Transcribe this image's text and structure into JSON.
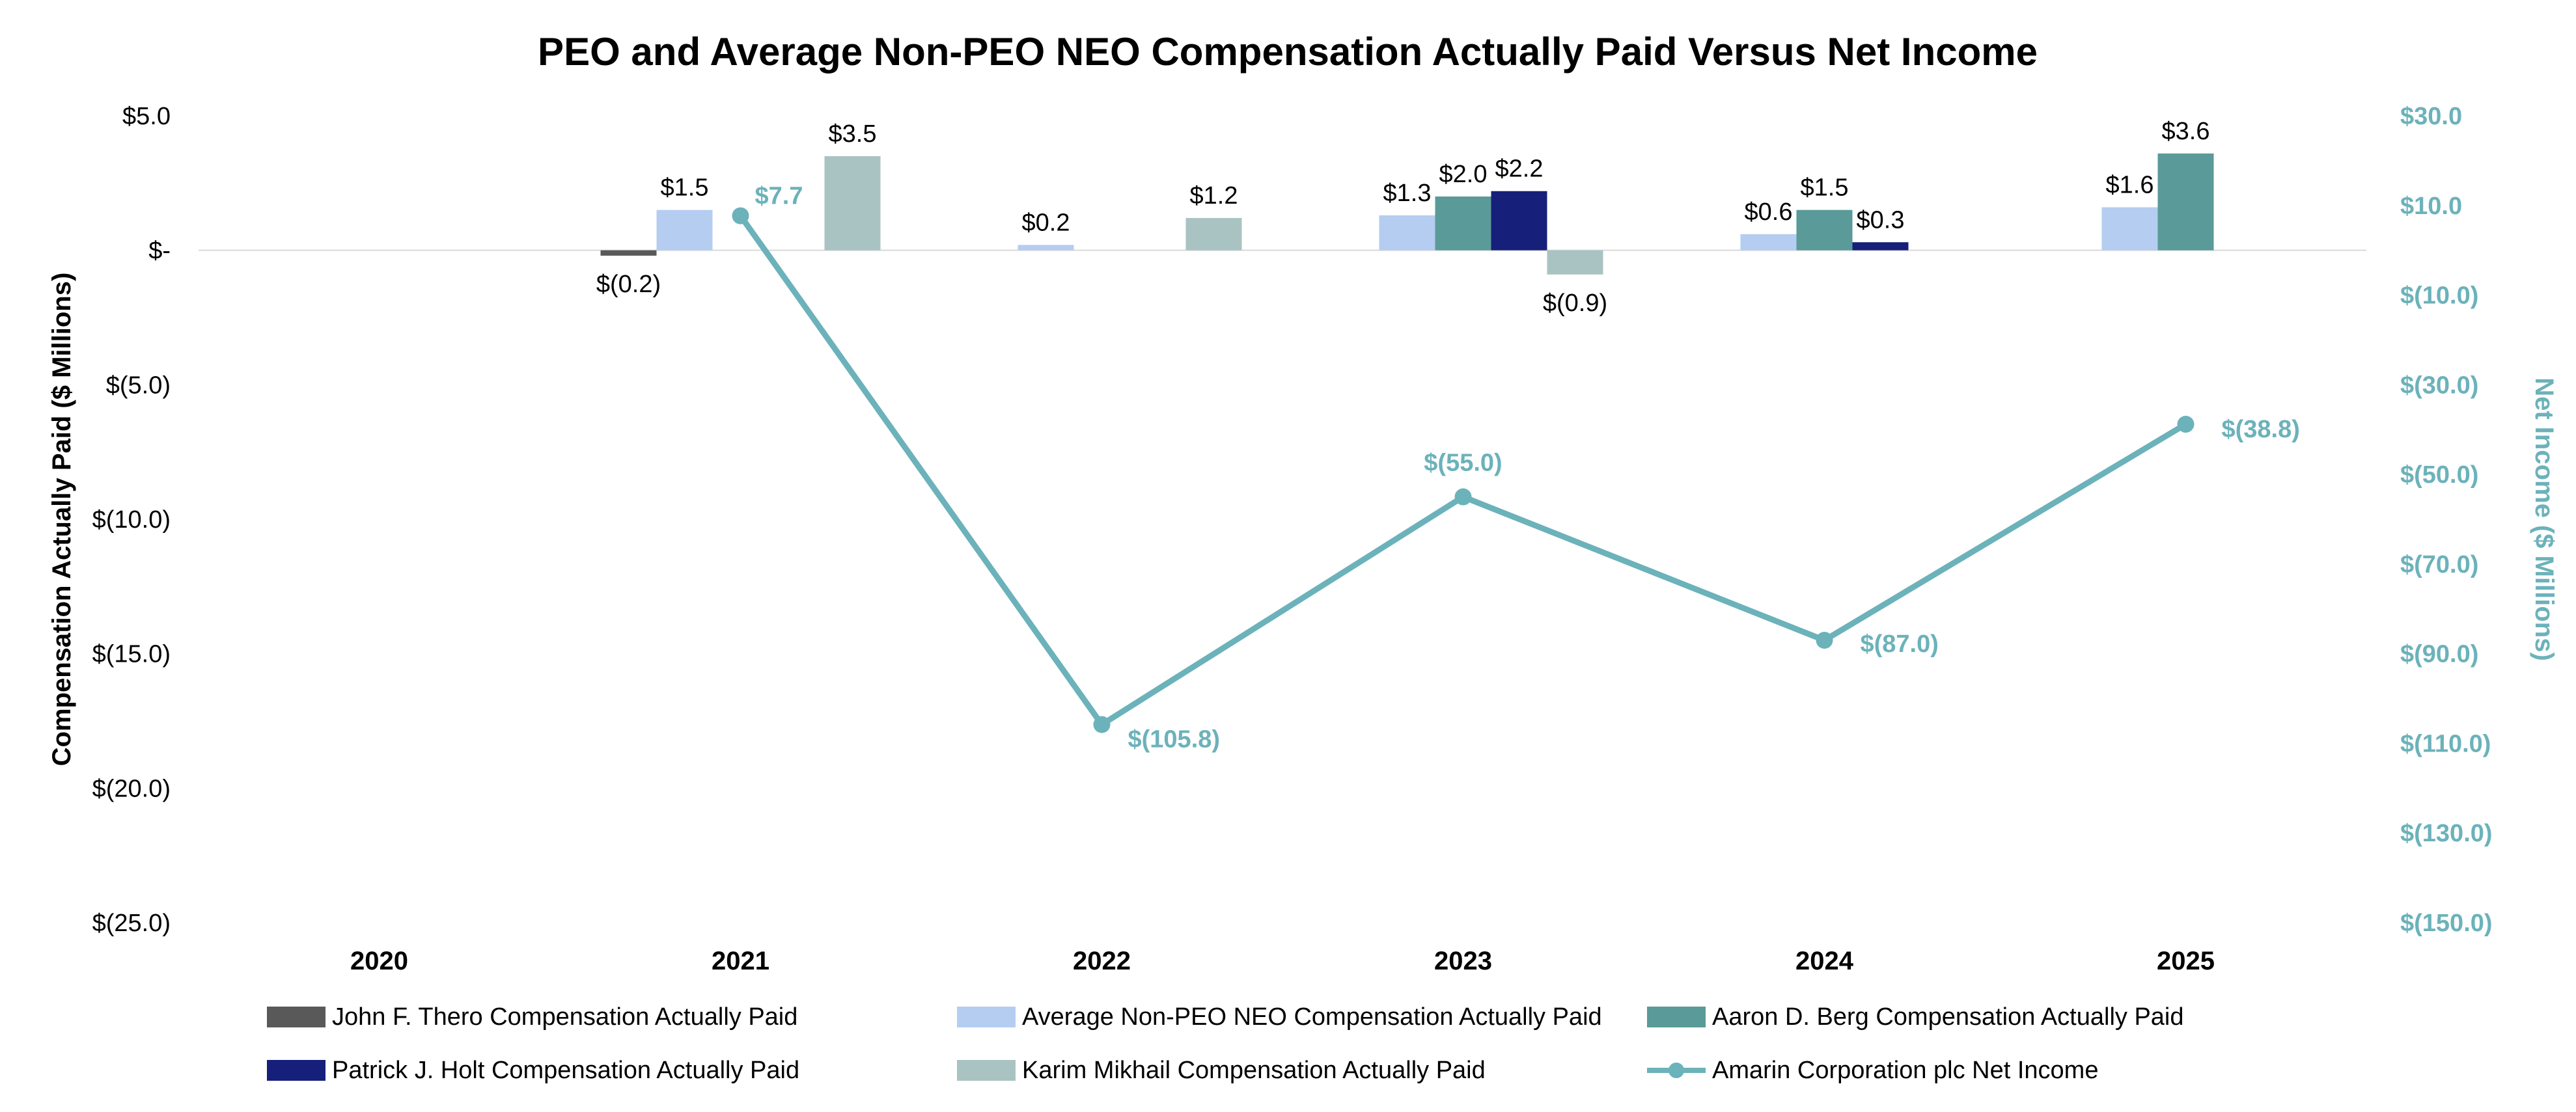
{
  "chart_data": {
    "type": "bar",
    "title": "PEO and Average Non-PEO NEO Compensation Actually Paid Versus Net Income",
    "categories": [
      "2020",
      "2021",
      "2022",
      "2023",
      "2024",
      "2025"
    ],
    "y_left": {
      "label": "Compensation Actually Paid ($ Millions)",
      "ylim": [
        -25,
        5
      ],
      "ticks": [
        5,
        0,
        -5,
        -10,
        -15,
        -20,
        -25
      ],
      "tick_labels": [
        "$5.0",
        "$-",
        "$(5.0)",
        "$(10.0)",
        "$(15.0)",
        "$(20.0)",
        "$(25.0)"
      ]
    },
    "y_right": {
      "label": "Net Income ($ Millions)",
      "ylim": [
        -150,
        30
      ],
      "ticks": [
        30,
        10,
        -10,
        -30,
        -50,
        -70,
        -90,
        -110,
        -130,
        -150
      ],
      "tick_labels": [
        "$30.0",
        "$10.0",
        "$(10.0)",
        "$(30.0)",
        "$(50.0)",
        "$(70.0)",
        "$(90.0)",
        "$(110.0)",
        "$(130.0)",
        "$(150.0)"
      ]
    },
    "bar_series": [
      {
        "name": "John F. Thero Compensation Actually Paid",
        "color": "#595959",
        "values": [
          null,
          -0.2,
          null,
          null,
          null,
          null
        ],
        "labels": [
          null,
          "$(0.2)",
          null,
          null,
          null,
          null
        ]
      },
      {
        "name": "Average Non-PEO NEO Compensation Actually Paid",
        "color": "#b4cdf0",
        "values": [
          null,
          1.5,
          0.2,
          1.3,
          0.6,
          1.6
        ],
        "labels": [
          null,
          "$1.5",
          "$0.2",
          "$1.3",
          "$0.6",
          "$1.6"
        ]
      },
      {
        "name": "Aaron D. Berg Compensation Actually Paid",
        "color": "#5a9a98",
        "values": [
          null,
          null,
          null,
          2.0,
          1.5,
          3.6
        ],
        "labels": [
          null,
          null,
          null,
          "$2.0",
          "$1.5",
          "$3.6"
        ]
      },
      {
        "name": "Patrick J. Holt Compensation Actually Paid",
        "color": "#16207a",
        "values": [
          null,
          null,
          null,
          2.2,
          0.3,
          null
        ],
        "labels": [
          null,
          null,
          null,
          "$2.2",
          "$0.3",
          null
        ]
      },
      {
        "name": "Karim Mikhail Compensation Actually Paid",
        "color": "#a9c3c2",
        "values": [
          null,
          3.5,
          1.2,
          -0.9,
          null,
          null
        ],
        "labels": [
          null,
          "$3.5",
          "$1.2",
          "$(0.9)",
          null,
          null
        ]
      }
    ],
    "line_series": {
      "name": "Amarin Corporation plc Net Income",
      "color": "#6cb2ba",
      "values": [
        null,
        7.7,
        -105.8,
        -55.0,
        -87.0,
        -38.8
      ],
      "labels": [
        null,
        "$7.7",
        "$(105.8)",
        "$(55.0)",
        "$(87.0)",
        "$(38.8)"
      ]
    },
    "legend": {
      "position": "bottom",
      "order": [
        0,
        1,
        2,
        3,
        4,
        "line"
      ]
    },
    "grid": false
  }
}
